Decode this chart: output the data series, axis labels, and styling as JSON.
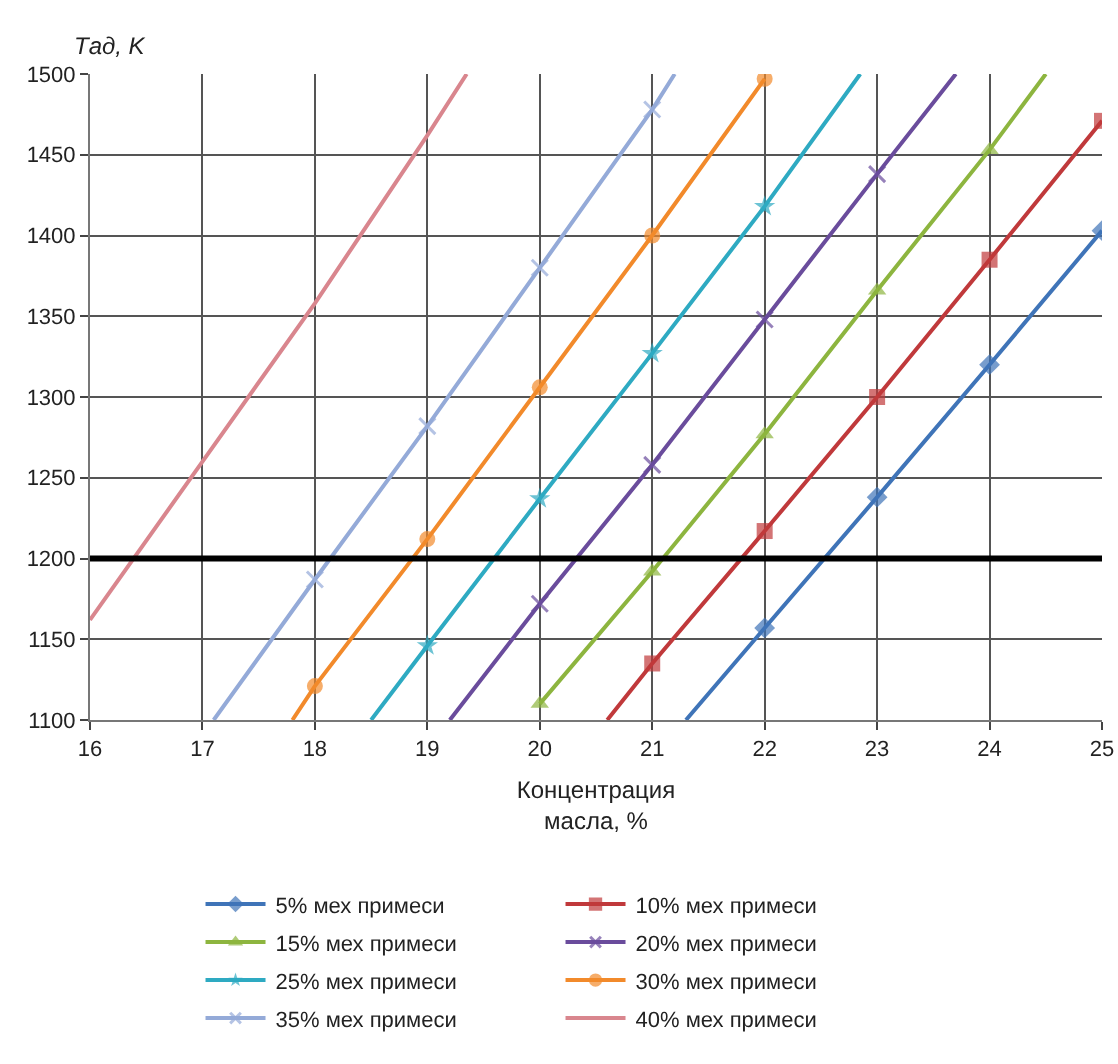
{
  "chart_data": {
    "type": "line",
    "xlabel": "Концентрация\nмасла, %",
    "ylabel": "Tад, K",
    "xlim": [
      16,
      25
    ],
    "xticks": [
      16,
      17,
      18,
      19,
      20,
      21,
      22,
      23,
      24,
      25
    ],
    "ylim": [
      1100,
      1500
    ],
    "yticks": [
      1100,
      1150,
      1200,
      1250,
      1300,
      1350,
      1400,
      1450,
      1500
    ],
    "grid": true,
    "legend": "bottom",
    "line_style": "solid",
    "ref_lines": [
      {
        "axis": "y",
        "value": 1200,
        "color": "#000000"
      }
    ],
    "series": [
      {
        "name": "5% мех примеси",
        "color": "#3f74b8",
        "marker": "diamond",
        "x": [
          21.3,
          22,
          23,
          24,
          25
        ],
        "values": [
          1100,
          1157,
          1238,
          1320,
          1403
        ]
      },
      {
        "name": "10% мех примеси",
        "color": "#c0393b",
        "marker": "square",
        "x": [
          20.6,
          21,
          22,
          23,
          24,
          25
        ],
        "values": [
          1100,
          1135,
          1217,
          1300,
          1385,
          1471
        ]
      },
      {
        "name": "15% мех примеси",
        "color": "#8db53f",
        "marker": "triangle",
        "x": [
          20,
          21,
          22,
          23,
          24,
          24.5
        ],
        "values": [
          1110,
          1192,
          1277,
          1366,
          1453,
          1500
        ]
      },
      {
        "name": "20% мех примеси",
        "color": "#6a4c9c",
        "marker": "cross",
        "x": [
          19.2,
          20,
          21,
          22,
          23,
          23.7
        ],
        "values": [
          1100,
          1172,
          1258,
          1348,
          1438,
          1500
        ]
      },
      {
        "name": "25% мех примеси",
        "color": "#2eaac2",
        "marker": "star",
        "x": [
          18.5,
          19,
          20,
          21,
          22,
          22.85
        ],
        "values": [
          1100,
          1146,
          1237,
          1327,
          1418,
          1500
        ]
      },
      {
        "name": "30% мех примеси",
        "color": "#f28a2b",
        "marker": "circle",
        "x": [
          17.8,
          18,
          19,
          20,
          21,
          22
        ],
        "values": [
          1100,
          1121,
          1212,
          1306,
          1400,
          1497
        ]
      },
      {
        "name": "35% мех примеси",
        "color": "#94aad8",
        "marker": "cross",
        "x": [
          17.1,
          18,
          19,
          20,
          21,
          21.2
        ],
        "values": [
          1100,
          1187,
          1282,
          1380,
          1478,
          1500
        ]
      },
      {
        "name": "40% мех примеси",
        "color": "#d9868e",
        "marker": "none",
        "x": [
          16,
          17,
          18,
          19,
          19.35
        ],
        "values": [
          1162,
          1260,
          1358,
          1462,
          1500
        ]
      }
    ]
  }
}
